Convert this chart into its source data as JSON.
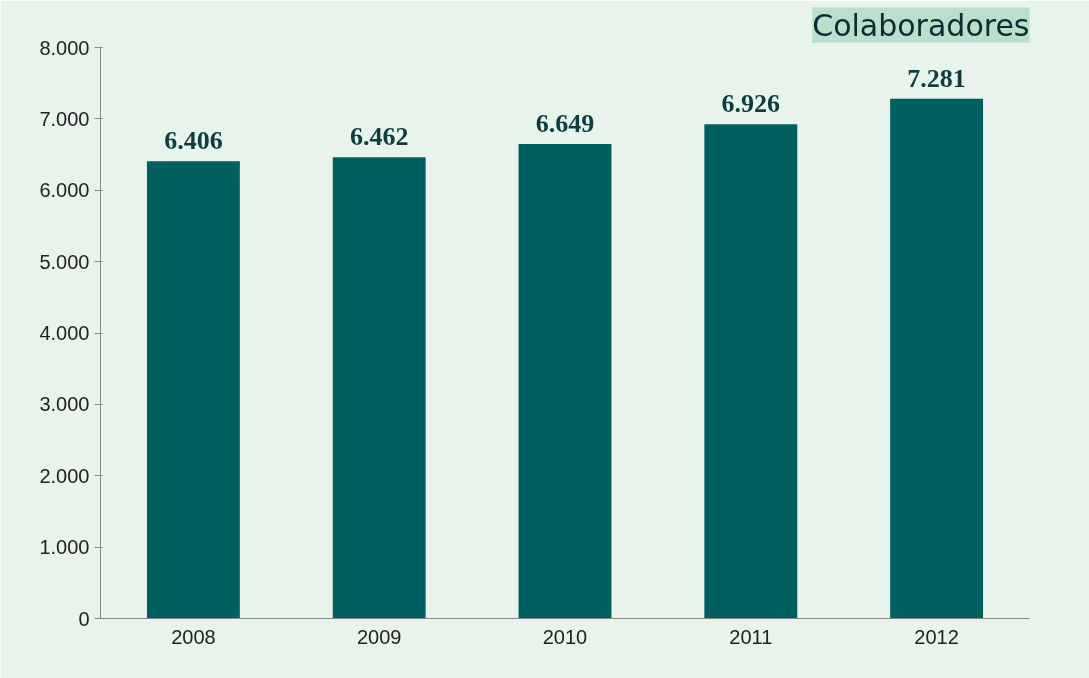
{
  "chart_data": {
    "type": "bar",
    "title": "Colaboradores",
    "categories": [
      "2008",
      "2009",
      "2010",
      "2011",
      "2012"
    ],
    "values": [
      6406,
      6462,
      6649,
      6926,
      7281
    ],
    "value_labels": [
      "6.406",
      "6.462",
      "6.649",
      "6.926",
      "7.281"
    ],
    "color": "#00605f",
    "ylim": [
      0,
      8000
    ],
    "yticks": [
      0,
      {
        "value": 1000,
        "label": "1.000"
      },
      {
        "value": 2000,
        "label": "2.000"
      },
      {
        "value": 3000,
        "label": "3.000"
      },
      {
        "value": 4000,
        "label": "4.000"
      },
      {
        "value": 5000,
        "label": "5.000"
      },
      {
        "value": 6000,
        "label": "6.000"
      },
      {
        "value": 7000,
        "label": "7.000"
      },
      {
        "value": 8000,
        "label": "8.000"
      }
    ],
    "grid": false
  }
}
